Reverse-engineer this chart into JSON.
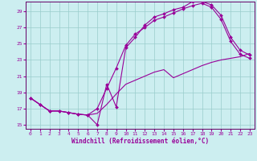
{
  "xlabel": "Windchill (Refroidissement éolien,°C)",
  "background_color": "#cceef0",
  "line_color": "#990099",
  "grid_color": "#99cccc",
  "xlim": [
    -0.5,
    23.5
  ],
  "ylim": [
    14.5,
    30.2
  ],
  "xticks": [
    0,
    1,
    2,
    3,
    4,
    5,
    6,
    7,
    8,
    9,
    10,
    11,
    12,
    13,
    14,
    15,
    16,
    17,
    18,
    19,
    20,
    21,
    22,
    23
  ],
  "yticks": [
    15,
    17,
    19,
    21,
    23,
    25,
    27,
    29
  ],
  "line1": {
    "x": [
      0,
      1,
      2,
      3,
      4,
      5,
      6,
      7,
      8,
      9,
      10,
      11,
      12,
      13,
      14,
      15,
      16,
      17,
      18,
      19,
      20,
      21,
      22,
      23
    ],
    "y": [
      18.3,
      17.5,
      16.7,
      16.7,
      16.5,
      16.3,
      16.2,
      15.0,
      20.0,
      17.2,
      24.5,
      25.8,
      27.3,
      28.3,
      28.7,
      29.2,
      29.5,
      30.2,
      30.2,
      29.8,
      28.5,
      25.8,
      24.2,
      23.6
    ],
    "has_marker": true
  },
  "line2": {
    "x": [
      0,
      1,
      2,
      3,
      4,
      5,
      6,
      7,
      8,
      9,
      10,
      11,
      12,
      13,
      14,
      15,
      16,
      17,
      18,
      19,
      20,
      21,
      22,
      23
    ],
    "y": [
      18.3,
      17.5,
      16.7,
      16.7,
      16.5,
      16.3,
      16.2,
      17.0,
      19.5,
      22.0,
      24.8,
      26.2,
      27.0,
      27.9,
      28.3,
      28.8,
      29.3,
      29.7,
      30.0,
      29.5,
      28.0,
      25.3,
      23.7,
      23.2
    ],
    "has_marker": true
  },
  "line3": {
    "x": [
      0,
      1,
      2,
      3,
      4,
      5,
      6,
      7,
      8,
      9,
      10,
      11,
      12,
      13,
      14,
      15,
      16,
      17,
      18,
      19,
      20,
      21,
      22,
      23
    ],
    "y": [
      18.3,
      17.5,
      16.7,
      16.7,
      16.5,
      16.3,
      16.2,
      16.4,
      17.5,
      18.8,
      20.0,
      20.5,
      21.0,
      21.5,
      21.8,
      20.8,
      21.3,
      21.8,
      22.3,
      22.7,
      23.0,
      23.2,
      23.4,
      23.8
    ],
    "has_marker": false
  },
  "marker_style": "D",
  "marker_size": 2.0,
  "line_width": 0.8,
  "tick_fontsize": 4.5,
  "xlabel_fontsize": 5.5,
  "spine_color": "#660066"
}
